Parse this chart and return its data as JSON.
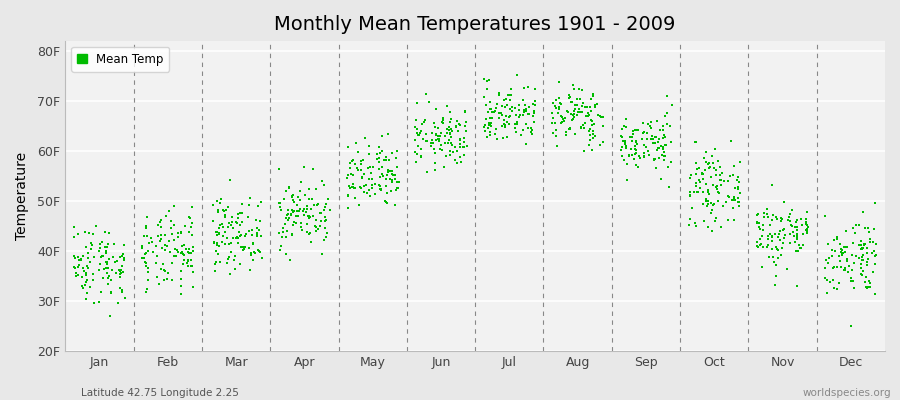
{
  "title": "Monthly Mean Temperatures 1901 - 2009",
  "ylabel": "Temperature",
  "bottom_left": "Latitude 42.75 Longitude 2.25",
  "bottom_right": "worldspecies.org",
  "legend_label": "Mean Temp",
  "marker_color": "#00BB00",
  "bg_color": "#E8E8E8",
  "plot_bg": "#F2F2F2",
  "ylim": [
    20,
    82
  ],
  "yticks": [
    20,
    30,
    40,
    50,
    60,
    70,
    80
  ],
  "ytick_labels": [
    "20F",
    "30F",
    "40F",
    "50F",
    "60F",
    "70F",
    "80F"
  ],
  "months": [
    "Jan",
    "Feb",
    "Mar",
    "Apr",
    "May",
    "Jun",
    "Jul",
    "Aug",
    "Sep",
    "Oct",
    "Nov",
    "Dec"
  ],
  "n_years": 109,
  "seed": 42,
  "monthly_mean_F": [
    37.5,
    39.5,
    43.5,
    47.5,
    54.5,
    62.5,
    67.5,
    67.0,
    61.5,
    52.5,
    43.5,
    39.0
  ],
  "monthly_std_F": [
    4.0,
    4.0,
    3.5,
    3.5,
    3.5,
    3.0,
    3.0,
    3.0,
    3.0,
    3.5,
    3.5,
    4.0
  ]
}
